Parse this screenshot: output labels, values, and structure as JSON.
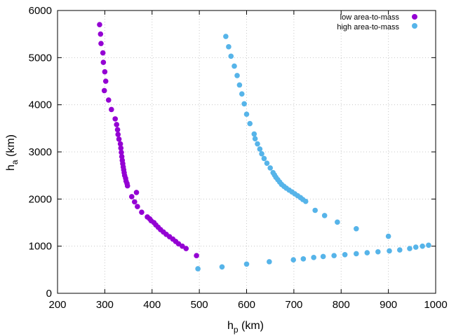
{
  "chart_data": {
    "type": "scatter",
    "title": "",
    "xlabel": {
      "base": "h",
      "sub": "p",
      "suffix": " (km)"
    },
    "ylabel": {
      "base": "h",
      "sub": "a",
      "suffix": " (km)"
    },
    "xlim": [
      200,
      1000
    ],
    "ylim": [
      0,
      6000
    ],
    "xticks": [
      200,
      300,
      400,
      500,
      600,
      700,
      800,
      900,
      1000
    ],
    "yticks": [
      0,
      1000,
      2000,
      3000,
      4000,
      5000,
      6000
    ],
    "grid": true,
    "legend_position": "top-right",
    "series": [
      {
        "name": "low area-to-mass",
        "color": "#9400d3",
        "points": [
          [
            289,
            5700
          ],
          [
            291,
            5500
          ],
          [
            292,
            5300
          ],
          [
            296,
            5100
          ],
          [
            297,
            4900
          ],
          [
            300,
            4700
          ],
          [
            302,
            4500
          ],
          [
            299,
            4300
          ],
          [
            308,
            4100
          ],
          [
            314,
            3900
          ],
          [
            322,
            3700
          ],
          [
            325,
            3580
          ],
          [
            327,
            3470
          ],
          [
            328,
            3370
          ],
          [
            330,
            3270
          ],
          [
            333,
            3170
          ],
          [
            334,
            3080
          ],
          [
            335,
            2990
          ],
          [
            336,
            2900
          ],
          [
            337,
            2820
          ],
          [
            338,
            2750
          ],
          [
            339,
            2680
          ],
          [
            340,
            2620
          ],
          [
            341,
            2560
          ],
          [
            342,
            2500
          ],
          [
            344,
            2440
          ],
          [
            345,
            2380
          ],
          [
            347,
            2330
          ],
          [
            348,
            2280
          ],
          [
            367,
            2140
          ],
          [
            357,
            2050
          ],
          [
            363,
            1940
          ],
          [
            369,
            1840
          ],
          [
            378,
            1720
          ],
          [
            390,
            1620
          ],
          [
            395,
            1580
          ],
          [
            398,
            1540
          ],
          [
            404,
            1500
          ],
          [
            408,
            1450
          ],
          [
            413,
            1400
          ],
          [
            418,
            1350
          ],
          [
            424,
            1300
          ],
          [
            430,
            1250
          ],
          [
            437,
            1200
          ],
          [
            444,
            1150
          ],
          [
            450,
            1100
          ],
          [
            456,
            1050
          ],
          [
            464,
            1000
          ],
          [
            472,
            950
          ],
          [
            494,
            800
          ]
        ]
      },
      {
        "name": "high area-to-mass",
        "color": "#56b4e9",
        "points": [
          [
            556,
            5450
          ],
          [
            562,
            5230
          ],
          [
            567,
            5030
          ],
          [
            574,
            4820
          ],
          [
            580,
            4620
          ],
          [
            585,
            4420
          ],
          [
            590,
            4230
          ],
          [
            595,
            4020
          ],
          [
            600,
            3800
          ],
          [
            607,
            3600
          ],
          [
            616,
            3380
          ],
          [
            618,
            3280
          ],
          [
            623,
            3170
          ],
          [
            628,
            3060
          ],
          [
            632,
            2960
          ],
          [
            637,
            2860
          ],
          [
            643,
            2760
          ],
          [
            650,
            2660
          ],
          [
            656,
            2560
          ],
          [
            659,
            2510
          ],
          [
            662,
            2460
          ],
          [
            666,
            2410
          ],
          [
            670,
            2360
          ],
          [
            674,
            2310
          ],
          [
            679,
            2270
          ],
          [
            684,
            2230
          ],
          [
            690,
            2190
          ],
          [
            696,
            2150
          ],
          [
            702,
            2110
          ],
          [
            708,
            2070
          ],
          [
            714,
            2030
          ],
          [
            719,
            1990
          ],
          [
            725,
            1950
          ],
          [
            745,
            1760
          ],
          [
            765,
            1650
          ],
          [
            792,
            1510
          ],
          [
            832,
            1370
          ],
          [
            900,
            1210
          ],
          [
            497,
            520
          ],
          [
            548,
            560
          ],
          [
            600,
            620
          ],
          [
            648,
            670
          ],
          [
            699,
            710
          ],
          [
            720,
            730
          ],
          [
            742,
            760
          ],
          [
            762,
            780
          ],
          [
            785,
            800
          ],
          [
            808,
            820
          ],
          [
            832,
            840
          ],
          [
            855,
            860
          ],
          [
            878,
            880
          ],
          [
            902,
            900
          ],
          [
            924,
            920
          ],
          [
            945,
            950
          ],
          [
            958,
            980
          ],
          [
            972,
            1000
          ],
          [
            985,
            1020
          ]
        ]
      }
    ]
  }
}
